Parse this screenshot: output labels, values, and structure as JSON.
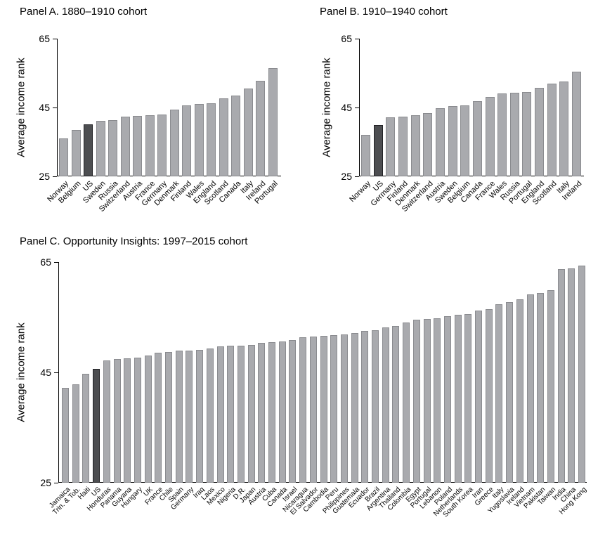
{
  "figure": {
    "background": "#ffffff",
    "bar_fill": "#a9aaae",
    "bar_border": "#8a8b8f",
    "highlight_fill": "#4d4e51",
    "highlight_border": "#222226",
    "highlighted_country": "US",
    "ylabel": "Average income rank"
  },
  "chart_data": [
    {
      "type": "bar",
      "panel": "A",
      "title": "Panel A. 1880–1910 cohort",
      "ylabel": "Average income rank",
      "ylim": [
        25,
        65
      ],
      "yticks": [
        25,
        45,
        65
      ],
      "grid": false,
      "legend": "none",
      "highlight": "US",
      "categories": [
        "Norway",
        "Belgium",
        "US",
        "Sweden",
        "Russia",
        "Switzerland",
        "Austria",
        "France",
        "Germany",
        "Denmark",
        "Finland",
        "Wales",
        "England",
        "Scotland",
        "Canada",
        "Italy",
        "Ireland",
        "Portugal"
      ],
      "values": [
        36.1,
        38.5,
        40.1,
        41.2,
        41.3,
        42.4,
        42.6,
        42.8,
        42.9,
        44.3,
        45.6,
        46.0,
        46.3,
        47.7,
        48.5,
        50.5,
        52.7,
        56.5
      ]
    },
    {
      "type": "bar",
      "panel": "B",
      "title": "Panel B. 1910–1940 cohort",
      "ylabel": "Average income rank",
      "ylim": [
        25,
        65
      ],
      "yticks": [
        25,
        45,
        65
      ],
      "grid": false,
      "legend": "none",
      "highlight": "US",
      "categories": [
        "Norway",
        "US",
        "Germany",
        "Finland",
        "Denmark",
        "Switzerland",
        "Austria",
        "Sweden",
        "Belgium",
        "Canada",
        "France",
        "Wales",
        "Russia",
        "Portugal",
        "England",
        "Scotland",
        "Italy",
        "Ireland"
      ],
      "values": [
        37.0,
        40.0,
        42.1,
        42.3,
        42.8,
        43.3,
        44.9,
        45.4,
        45.6,
        46.8,
        48.0,
        49.1,
        49.2,
        49.4,
        50.7,
        52.0,
        52.5,
        55.4
      ]
    },
    {
      "type": "bar",
      "panel": "C",
      "title": "Panel C. Opportunity Insights: 1997–2015 cohort",
      "ylabel": "Average income rank",
      "ylim": [
        25,
        65
      ],
      "yticks": [
        25,
        45,
        65
      ],
      "grid": false,
      "legend": "none",
      "highlight": "US",
      "categories": [
        "Jamaica",
        "Trin. & Tob.",
        "Haiti",
        "US",
        "Honduras",
        "Panama",
        "Guyana",
        "Hungary",
        "UK",
        "France",
        "Chile",
        "Spain",
        "Germany",
        "Iraq",
        "Laos",
        "Mexico",
        "Nigeria",
        "D.R.",
        "Japan",
        "Austria",
        "Cuba",
        "Canada",
        "Israel",
        "Nicaragua",
        "El Salvador",
        "Cambodia",
        "Peru",
        "Philippines",
        "Guatemala",
        "Ecuador",
        "Brazil",
        "Argentina",
        "Thailand",
        "Colombia",
        "Egypt",
        "Portugal",
        "Lebanon",
        "Poland",
        "Netherlands",
        "South Korea",
        "Iran",
        "Greece",
        "Italy",
        "Yugoslavia",
        "Ireland",
        "Vietnam",
        "Pakistan",
        "Taiwan",
        "India",
        "China",
        "Hong Kong"
      ],
      "values": [
        42.2,
        42.8,
        44.7,
        45.7,
        47.2,
        47.4,
        47.5,
        47.7,
        48.1,
        48.6,
        48.7,
        48.9,
        49.0,
        49.1,
        49.3,
        49.7,
        49.8,
        49.9,
        50.0,
        50.3,
        50.5,
        50.6,
        50.9,
        51.4,
        51.5,
        51.6,
        51.8,
        51.9,
        52.1,
        52.5,
        52.6,
        53.2,
        53.4,
        54.0,
        54.6,
        54.7,
        54.8,
        55.2,
        55.4,
        55.6,
        56.2,
        56.5,
        57.4,
        57.7,
        58.3,
        59.1,
        59.4,
        59.9,
        63.7,
        63.8,
        64.4
      ]
    }
  ]
}
